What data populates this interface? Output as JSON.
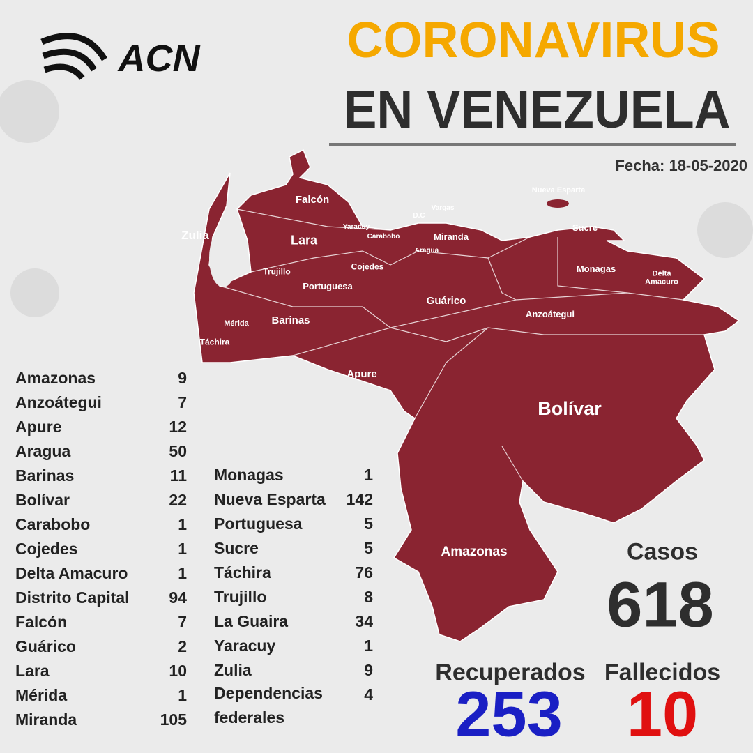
{
  "header": {
    "logo": "ACN",
    "title_line1": "CORONAVIRUS",
    "title_line2": "EN VENEZUELA",
    "date": "Fecha: 18-05-2020"
  },
  "map": {
    "labels": [
      "Falcón",
      "Zulia",
      "Lara",
      "Yaracuy",
      "Carabobo",
      "D.C",
      "Vargas",
      "Miranda",
      "Aragua",
      "Nueva Esparta",
      "Sucre",
      "Monagas",
      "Delta Amacuro",
      "Trujillo",
      "Portuguesa",
      "Cojedes",
      "Guárico",
      "Anzoátegui",
      "Barinas",
      "Mérida",
      "Táchira",
      "Apure",
      "Bolívar",
      "Amazonas"
    ]
  },
  "states": {
    "column1": [
      [
        "Amazonas",
        9
      ],
      [
        "Anzoátegui",
        7
      ],
      [
        "Apure",
        12
      ],
      [
        "Aragua",
        50
      ],
      [
        "Barinas",
        11
      ],
      [
        "Bolívar",
        22
      ],
      [
        "Carabobo",
        1
      ],
      [
        "Cojedes",
        1
      ],
      [
        "Delta Amacuro",
        1
      ],
      [
        "Distrito Capital",
        94
      ],
      [
        "Falcón",
        7
      ],
      [
        "Guárico",
        2
      ],
      [
        "Lara",
        10
      ],
      [
        "Mérida",
        1
      ],
      [
        "Miranda",
        105
      ]
    ],
    "column2": [
      [
        "Monagas",
        1
      ],
      [
        "Nueva Esparta",
        142
      ],
      [
        "Portuguesa",
        5
      ],
      [
        "Sucre",
        5
      ],
      [
        "Táchira",
        76
      ],
      [
        "Trujillo",
        8
      ],
      [
        "La Guaira",
        34
      ],
      [
        "Yaracuy",
        1
      ],
      [
        "Zulia",
        9
      ],
      [
        "Dependencias federales",
        4
      ]
    ]
  },
  "totals": {
    "cases_label": "Casos",
    "cases": 618,
    "recovered_label": "Recuperados",
    "recovered": 253,
    "deaths_label": "Fallecidos",
    "deaths": 10
  }
}
